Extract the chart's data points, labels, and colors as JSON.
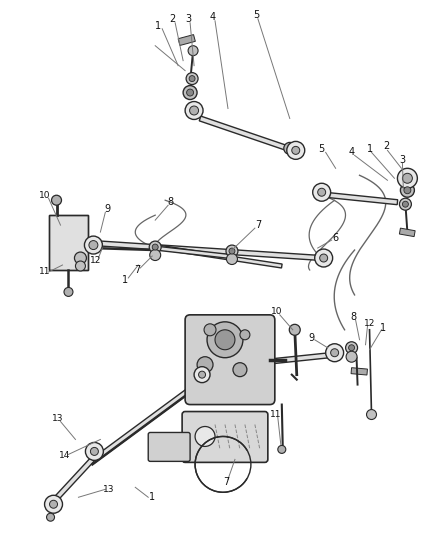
{
  "bg_color": "#ffffff",
  "line_color": "#2a2a2a",
  "gray_color": "#888888",
  "light_gray": "#cccccc",
  "med_gray": "#999999",
  "fig_width": 4.38,
  "fig_height": 5.33,
  "dpi": 100,
  "label_fs": 7,
  "leader_color": "#777777",
  "component_color": "#555555"
}
